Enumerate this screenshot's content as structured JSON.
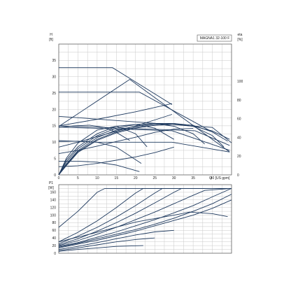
{
  "chart_data": {
    "type": "line",
    "title": "MAGNA1 32-100 F",
    "colors": {
      "grid": "#c9c9c9",
      "curve": "#1f3a5f",
      "frame": "#555555"
    },
    "top": {
      "ylabel_left": "H",
      "yunit_left": "[ft]",
      "ylabel_right": "eta",
      "yunit_right": "[%]",
      "xlabel": "Q",
      "xunit": "[US gpm]",
      "xlim": [
        0,
        45
      ],
      "ylim_left": [
        0,
        40
      ],
      "ylim_right": [
        0,
        140
      ],
      "xticks": [
        "0",
        "5",
        "10",
        "15",
        "20",
        "25",
        "30",
        "35",
        "40"
      ],
      "yticks_left": [
        "0",
        "5",
        "10",
        "15",
        "20",
        "25",
        "30",
        "35"
      ],
      "yticks_right": [
        "0",
        "20",
        "40",
        "60",
        "80",
        "100"
      ],
      "series": [
        {
          "axis": "left",
          "x": [
            0,
            14,
            29.5
          ],
          "y": [
            32.8,
            32.8,
            21.5
          ]
        },
        {
          "axis": "left",
          "x": [
            0,
            21,
            41
          ],
          "y": [
            25.3,
            25.3,
            12.5
          ]
        },
        {
          "axis": "left",
          "x": [
            0,
            40,
            45
          ],
          "y": [
            17.9,
            14.5,
            9.8
          ]
        },
        {
          "axis": "left",
          "x": [
            0,
            35.5,
            44.5
          ],
          "y": [
            15.0,
            13.5,
            9.0
          ]
        },
        {
          "axis": "left",
          "x": [
            0,
            29.5,
            44.5
          ],
          "y": [
            14.6,
            13.5,
            7.5
          ]
        },
        {
          "axis": "left",
          "x": [
            0,
            10,
            29.5,
            44.5
          ],
          "y": [
            10.5,
            10.0,
            10.0,
            7.0
          ]
        },
        {
          "axis": "left",
          "x": [
            0,
            18.5,
            44.5
          ],
          "y": [
            14.8,
            29.2,
            7.0
          ]
        },
        {
          "axis": "left",
          "x": [
            0,
            5,
            10,
            15,
            20,
            25,
            30,
            35
          ],
          "y": [
            6.5,
            7.5,
            8.8,
            10.2,
            11.5,
            13.0,
            14.0,
            14.2
          ]
        },
        {
          "axis": "left",
          "x": [
            0,
            5,
            10,
            15,
            20,
            25,
            29.5
          ],
          "y": [
            8.5,
            10.0,
            11.7,
            13.4,
            15.0,
            16.8,
            18.5
          ]
        },
        {
          "axis": "left",
          "x": [
            0,
            10,
            20,
            29.5
          ],
          "y": [
            15.0,
            17.0,
            19.3,
            21.8
          ]
        },
        {
          "axis": "left",
          "x": [
            0,
            5,
            10,
            15,
            20,
            25,
            30
          ],
          "y": [
            2.5,
            2.8,
            3.5,
            4.5,
            5.5,
            6.8,
            8.5
          ]
        },
        {
          "axis": "left",
          "x": [
            0,
            5,
            10,
            15,
            21
          ],
          "y": [
            4.2,
            4.2,
            3.9,
            3.0,
            1.0
          ]
        },
        {
          "axis": "left",
          "x": [
            0,
            5,
            10,
            15,
            21.5
          ],
          "y": [
            10.2,
            10.3,
            10.0,
            8.5,
            3.5
          ]
        },
        {
          "axis": "left",
          "x": [
            0,
            4,
            8,
            12,
            15,
            18.5
          ],
          "y": [
            14.5,
            15.0,
            15.2,
            14.5,
            13.0,
            10.5
          ]
        },
        {
          "axis": "right",
          "x": [
            0,
            2,
            5,
            10,
            15,
            20,
            23
          ],
          "y": [
            0,
            18,
            34,
            48,
            52,
            44,
            30
          ]
        },
        {
          "axis": "right",
          "x": [
            0,
            2,
            5,
            10,
            15,
            20,
            25,
            30
          ],
          "y": [
            0,
            16,
            30,
            44,
            52,
            54,
            50,
            38
          ]
        },
        {
          "axis": "right",
          "x": [
            0,
            2,
            5,
            10,
            15,
            20,
            25,
            30,
            35,
            38
          ],
          "y": [
            0,
            14,
            28,
            42,
            50,
            54,
            55,
            52,
            44,
            33
          ]
        },
        {
          "axis": "right",
          "x": [
            0,
            2,
            5,
            10,
            15,
            20,
            25,
            30,
            35,
            40,
            43
          ],
          "y": [
            0,
            12,
            26,
            40,
            48,
            52,
            55,
            55,
            52,
            42,
            30
          ]
        },
        {
          "axis": "right",
          "x": [
            0,
            2,
            5,
            10,
            15,
            20,
            25,
            30,
            35,
            40,
            44
          ],
          "y": [
            0,
            11,
            25,
            38,
            46,
            51,
            54,
            55,
            53,
            46,
            36
          ]
        },
        {
          "axis": "right",
          "x": [
            0,
            2,
            5,
            10,
            15,
            20,
            25,
            30,
            35,
            40,
            44.5
          ],
          "y": [
            0,
            10,
            24,
            37,
            45,
            50,
            53,
            54,
            52,
            47,
            38
          ]
        }
      ]
    },
    "bottom": {
      "ylabel": "P1",
      "yunit": "[W]",
      "xlim": [
        0,
        45
      ],
      "ylim": [
        0,
        180
      ],
      "yticks": [
        "0",
        "20",
        "40",
        "60",
        "80",
        "100",
        "120",
        "140",
        "160"
      ],
      "series": [
        {
          "x": [
            0,
            5,
            10,
            12,
            45
          ],
          "y": [
            68,
            110,
            160,
            170,
            170
          ]
        },
        {
          "x": [
            0,
            5,
            10,
            15,
            20,
            22,
            45
          ],
          "y": [
            30,
            55,
            85,
            120,
            158,
            170,
            170
          ]
        },
        {
          "x": [
            0,
            5,
            10,
            15,
            20,
            25,
            27,
            45
          ],
          "y": [
            25,
            45,
            68,
            95,
            125,
            158,
            170,
            170
          ]
        },
        {
          "x": [
            0,
            5,
            10,
            15,
            20,
            25,
            30,
            32,
            45
          ],
          "y": [
            22,
            38,
            58,
            80,
            105,
            132,
            160,
            170,
            170
          ]
        },
        {
          "x": [
            0,
            5,
            10,
            15,
            20,
            25,
            30,
            35,
            38,
            45
          ],
          "y": [
            20,
            33,
            50,
            68,
            88,
            108,
            130,
            152,
            165,
            170
          ]
        },
        {
          "x": [
            0,
            5,
            10,
            15,
            20,
            25,
            30,
            35,
            40,
            45
          ],
          "y": [
            18,
            28,
            42,
            56,
            72,
            88,
            106,
            125,
            148,
            170
          ]
        },
        {
          "x": [
            0,
            5,
            10,
            15,
            20,
            25,
            30,
            35,
            40,
            45
          ],
          "y": [
            16,
            26,
            38,
            50,
            62,
            76,
            92,
            110,
            130,
            155
          ]
        },
        {
          "x": [
            0,
            5,
            10,
            15,
            20,
            25,
            30,
            35,
            40,
            45
          ],
          "y": [
            14,
            24,
            34,
            46,
            58,
            72,
            86,
            100,
            118,
            140
          ]
        },
        {
          "x": [
            0,
            10,
            20,
            30,
            34,
            40,
            44
          ],
          "y": [
            30,
            55,
            82,
            100,
            108,
            104,
            96
          ]
        },
        {
          "x": [
            0,
            5,
            10,
            15,
            20,
            25,
            30
          ],
          "y": [
            10,
            18,
            28,
            38,
            48,
            56,
            60
          ]
        },
        {
          "x": [
            0,
            5,
            10,
            15,
            20,
            25
          ],
          "y": [
            7,
            14,
            22,
            30,
            36,
            40
          ]
        },
        {
          "x": [
            0,
            5,
            10,
            15,
            22
          ],
          "y": [
            5,
            10,
            14,
            18,
            20
          ]
        }
      ]
    }
  }
}
